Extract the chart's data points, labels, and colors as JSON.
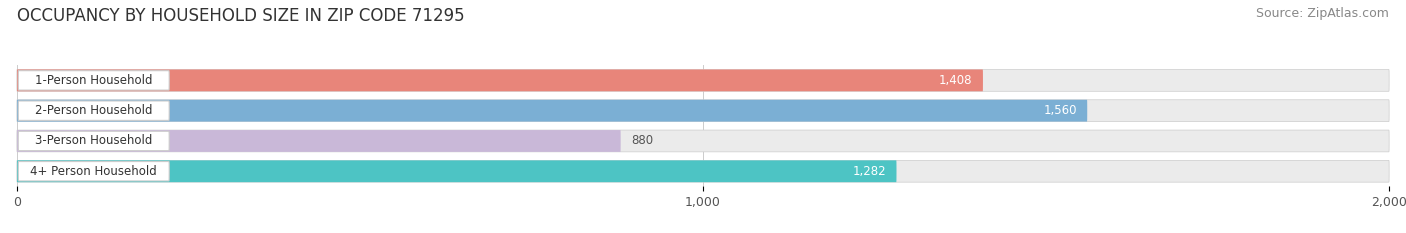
{
  "title": "OCCUPANCY BY HOUSEHOLD SIZE IN ZIP CODE 71295",
  "source": "Source: ZipAtlas.com",
  "categories": [
    "1-Person Household",
    "2-Person Household",
    "3-Person Household",
    "4+ Person Household"
  ],
  "values": [
    1408,
    1560,
    880,
    1282
  ],
  "bar_colors": [
    "#E8857A",
    "#7BAFD4",
    "#C9B8D8",
    "#4DC4C4"
  ],
  "value_colors": [
    "white",
    "white",
    "black",
    "white"
  ],
  "xlim": [
    0,
    2000
  ],
  "xticks": [
    0,
    1000,
    2000
  ],
  "xtick_labels": [
    "0",
    "1,000",
    "2,000"
  ],
  "title_fontsize": 12,
  "source_fontsize": 9,
  "bar_height": 0.72,
  "background_color": "#ffffff",
  "bar_background_color": "#ebebeb"
}
